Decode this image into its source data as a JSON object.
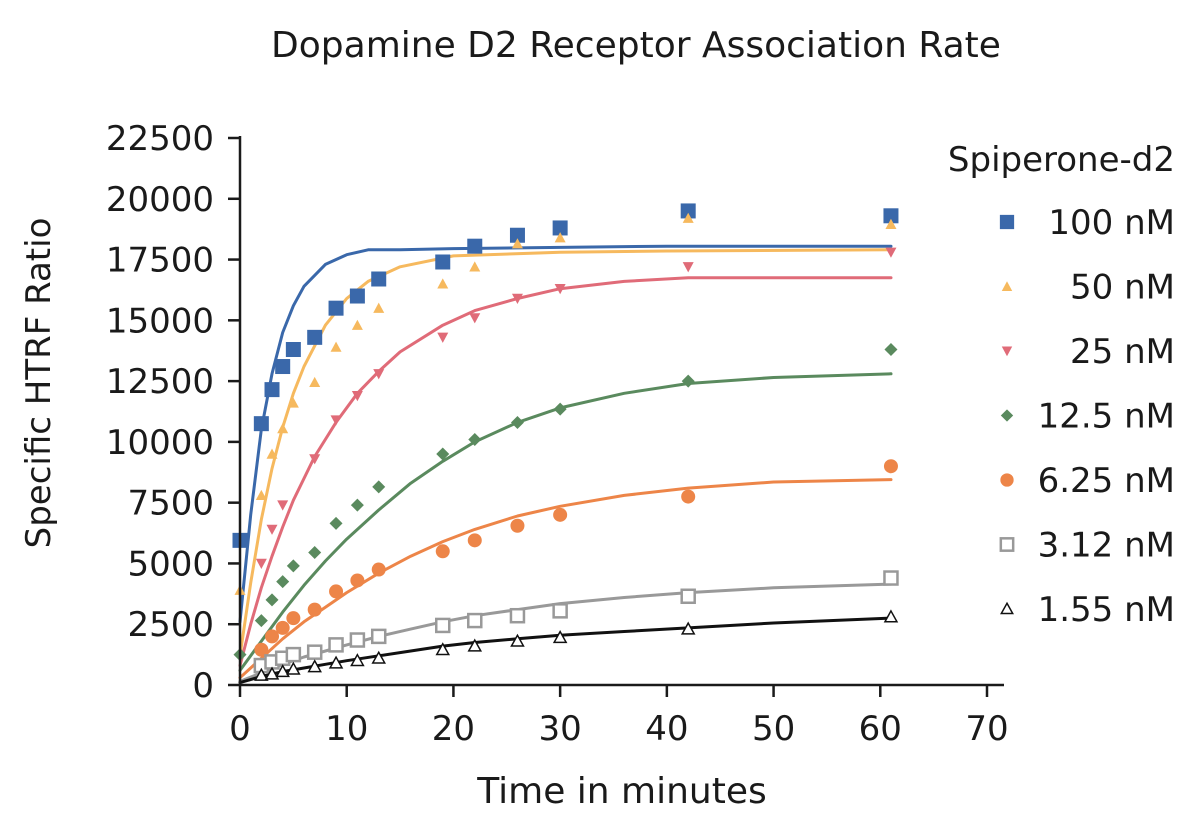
{
  "chart_data": {
    "type": "scatter",
    "title": "Dopamine D2 Receptor Association Rate",
    "xlabel": "Time in minutes",
    "ylabel": "Specific HTRF Ratio",
    "xlim": [
      0,
      70
    ],
    "ylim": [
      0,
      22500
    ],
    "xticks": [
      0,
      10,
      20,
      30,
      40,
      50,
      60,
      70
    ],
    "yticks": [
      0,
      2500,
      5000,
      7500,
      10000,
      12500,
      15000,
      17500,
      20000,
      22500
    ],
    "legend_title": "Spiperone-d2",
    "legend_position": "right",
    "grid": false,
    "series": [
      {
        "name": "100 nM",
        "marker": "square",
        "color": "#3a68aa",
        "x": [
          0,
          2,
          3,
          4,
          5,
          7,
          9,
          11,
          13,
          19,
          22,
          26,
          30,
          42,
          61
        ],
        "y": [
          5950,
          10750,
          12150,
          13100,
          13800,
          14300,
          15500,
          16000,
          16700,
          17400,
          18050,
          18500,
          18800,
          19500,
          19300
        ],
        "fit": [
          [
            0,
            2600
          ],
          [
            1,
            7000
          ],
          [
            2,
            10500
          ],
          [
            3,
            12800
          ],
          [
            4,
            14500
          ],
          [
            5,
            15600
          ],
          [
            6,
            16400
          ],
          [
            8,
            17300
          ],
          [
            10,
            17700
          ],
          [
            12,
            17900
          ],
          [
            15,
            17900
          ],
          [
            20,
            17950
          ],
          [
            30,
            18000
          ],
          [
            40,
            18050
          ],
          [
            61,
            18050
          ]
        ]
      },
      {
        "name": "50 nM",
        "marker": "triangle-up",
        "color": "#f6b95e",
        "x": [
          0,
          2,
          3,
          4,
          5,
          7,
          9,
          11,
          13,
          19,
          22,
          26,
          30,
          42,
          61
        ],
        "y": [
          3900,
          7800,
          9500,
          10550,
          11600,
          12450,
          13900,
          14800,
          15500,
          16500,
          17200,
          18150,
          18400,
          19200,
          18950
        ],
        "fit": [
          [
            0,
            1200
          ],
          [
            1,
            4200
          ],
          [
            2,
            6800
          ],
          [
            3,
            8900
          ],
          [
            4,
            10600
          ],
          [
            5,
            12000
          ],
          [
            6,
            13100
          ],
          [
            8,
            14800
          ],
          [
            10,
            15900
          ],
          [
            12,
            16600
          ],
          [
            15,
            17200
          ],
          [
            20,
            17650
          ],
          [
            30,
            17800
          ],
          [
            40,
            17850
          ],
          [
            61,
            17900
          ]
        ]
      },
      {
        "name": "25 nM",
        "marker": "triangle-down",
        "color": "#e06b78",
        "x": [
          2,
          3,
          4,
          7,
          9,
          11,
          13,
          19,
          22,
          26,
          30,
          42,
          61
        ],
        "y": [
          5000,
          6400,
          7400,
          9300,
          10900,
          11900,
          12800,
          14300,
          15100,
          15900,
          16300,
          17200,
          17800
        ],
        "fit": [
          [
            0,
            800
          ],
          [
            1,
            2500
          ],
          [
            2,
            4000
          ],
          [
            3,
            5300
          ],
          [
            4,
            6500
          ],
          [
            5,
            7600
          ],
          [
            7,
            9400
          ],
          [
            9,
            10800
          ],
          [
            11,
            12000
          ],
          [
            13,
            12900
          ],
          [
            15,
            13700
          ],
          [
            19,
            14800
          ],
          [
            22,
            15400
          ],
          [
            26,
            15900
          ],
          [
            30,
            16300
          ],
          [
            36,
            16600
          ],
          [
            42,
            16750
          ],
          [
            61,
            16750
          ]
        ]
      },
      {
        "name": "12.5 nM",
        "marker": "diamond",
        "color": "#5a8a5e",
        "x": [
          0,
          2,
          3,
          4,
          5,
          7,
          9,
          11,
          13,
          19,
          22,
          26,
          30,
          42,
          61
        ],
        "y": [
          1250,
          2650,
          3500,
          4250,
          4900,
          5450,
          6650,
          7400,
          8150,
          9500,
          10100,
          10800,
          11350,
          12500,
          13800
        ],
        "fit": [
          [
            0,
            600
          ],
          [
            2,
            1800
          ],
          [
            4,
            3000
          ],
          [
            6,
            4100
          ],
          [
            8,
            5100
          ],
          [
            10,
            6000
          ],
          [
            13,
            7200
          ],
          [
            16,
            8300
          ],
          [
            19,
            9200
          ],
          [
            22,
            10000
          ],
          [
            26,
            10800
          ],
          [
            30,
            11400
          ],
          [
            36,
            12000
          ],
          [
            42,
            12400
          ],
          [
            50,
            12650
          ],
          [
            61,
            12800
          ]
        ]
      },
      {
        "name": "6.25 nM",
        "marker": "circle",
        "color": "#ed8548",
        "x": [
          2,
          3,
          4,
          5,
          7,
          9,
          11,
          13,
          19,
          22,
          26,
          30,
          42,
          61
        ],
        "y": [
          1450,
          2000,
          2350,
          2750,
          3100,
          3850,
          4300,
          4750,
          5500,
          5950,
          6550,
          7000,
          7750,
          9000
        ],
        "fit": [
          [
            0,
            300
          ],
          [
            2,
            1100
          ],
          [
            4,
            1900
          ],
          [
            6,
            2600
          ],
          [
            8,
            3200
          ],
          [
            10,
            3800
          ],
          [
            13,
            4600
          ],
          [
            16,
            5300
          ],
          [
            19,
            5900
          ],
          [
            22,
            6400
          ],
          [
            26,
            6950
          ],
          [
            30,
            7350
          ],
          [
            36,
            7800
          ],
          [
            42,
            8100
          ],
          [
            50,
            8350
          ],
          [
            61,
            8450
          ]
        ]
      },
      {
        "name": "3.12 nM",
        "marker": "square-open",
        "color": "#999999",
        "x": [
          2,
          3,
          4,
          5,
          7,
          9,
          11,
          13,
          19,
          22,
          26,
          30,
          42,
          61
        ],
        "y": [
          800,
          950,
          1100,
          1250,
          1350,
          1650,
          1850,
          2000,
          2450,
          2650,
          2850,
          3050,
          3650,
          4400
        ],
        "fit": [
          [
            0,
            150
          ],
          [
            2,
            500
          ],
          [
            4,
            850
          ],
          [
            6,
            1150
          ],
          [
            8,
            1400
          ],
          [
            10,
            1650
          ],
          [
            13,
            2000
          ],
          [
            16,
            2300
          ],
          [
            19,
            2600
          ],
          [
            22,
            2850
          ],
          [
            26,
            3100
          ],
          [
            30,
            3350
          ],
          [
            36,
            3600
          ],
          [
            42,
            3800
          ],
          [
            50,
            4000
          ],
          [
            61,
            4150
          ]
        ]
      },
      {
        "name": "1.55 nM",
        "marker": "triangle-open",
        "color": "#111111",
        "x": [
          2,
          3,
          4,
          5,
          7,
          9,
          11,
          13,
          19,
          22,
          26,
          30,
          42,
          61
        ],
        "y": [
          400,
          450,
          550,
          650,
          750,
          900,
          1000,
          1100,
          1450,
          1600,
          1800,
          1950,
          2300,
          2800
        ],
        "fit": [
          [
            0,
            100
          ],
          [
            2,
            350
          ],
          [
            4,
            550
          ],
          [
            6,
            700
          ],
          [
            8,
            850
          ],
          [
            10,
            1000
          ],
          [
            13,
            1200
          ],
          [
            16,
            1400
          ],
          [
            19,
            1600
          ],
          [
            22,
            1750
          ],
          [
            26,
            1900
          ],
          [
            30,
            2050
          ],
          [
            36,
            2200
          ],
          [
            42,
            2350
          ],
          [
            50,
            2550
          ],
          [
            61,
            2750
          ]
        ]
      }
    ]
  }
}
